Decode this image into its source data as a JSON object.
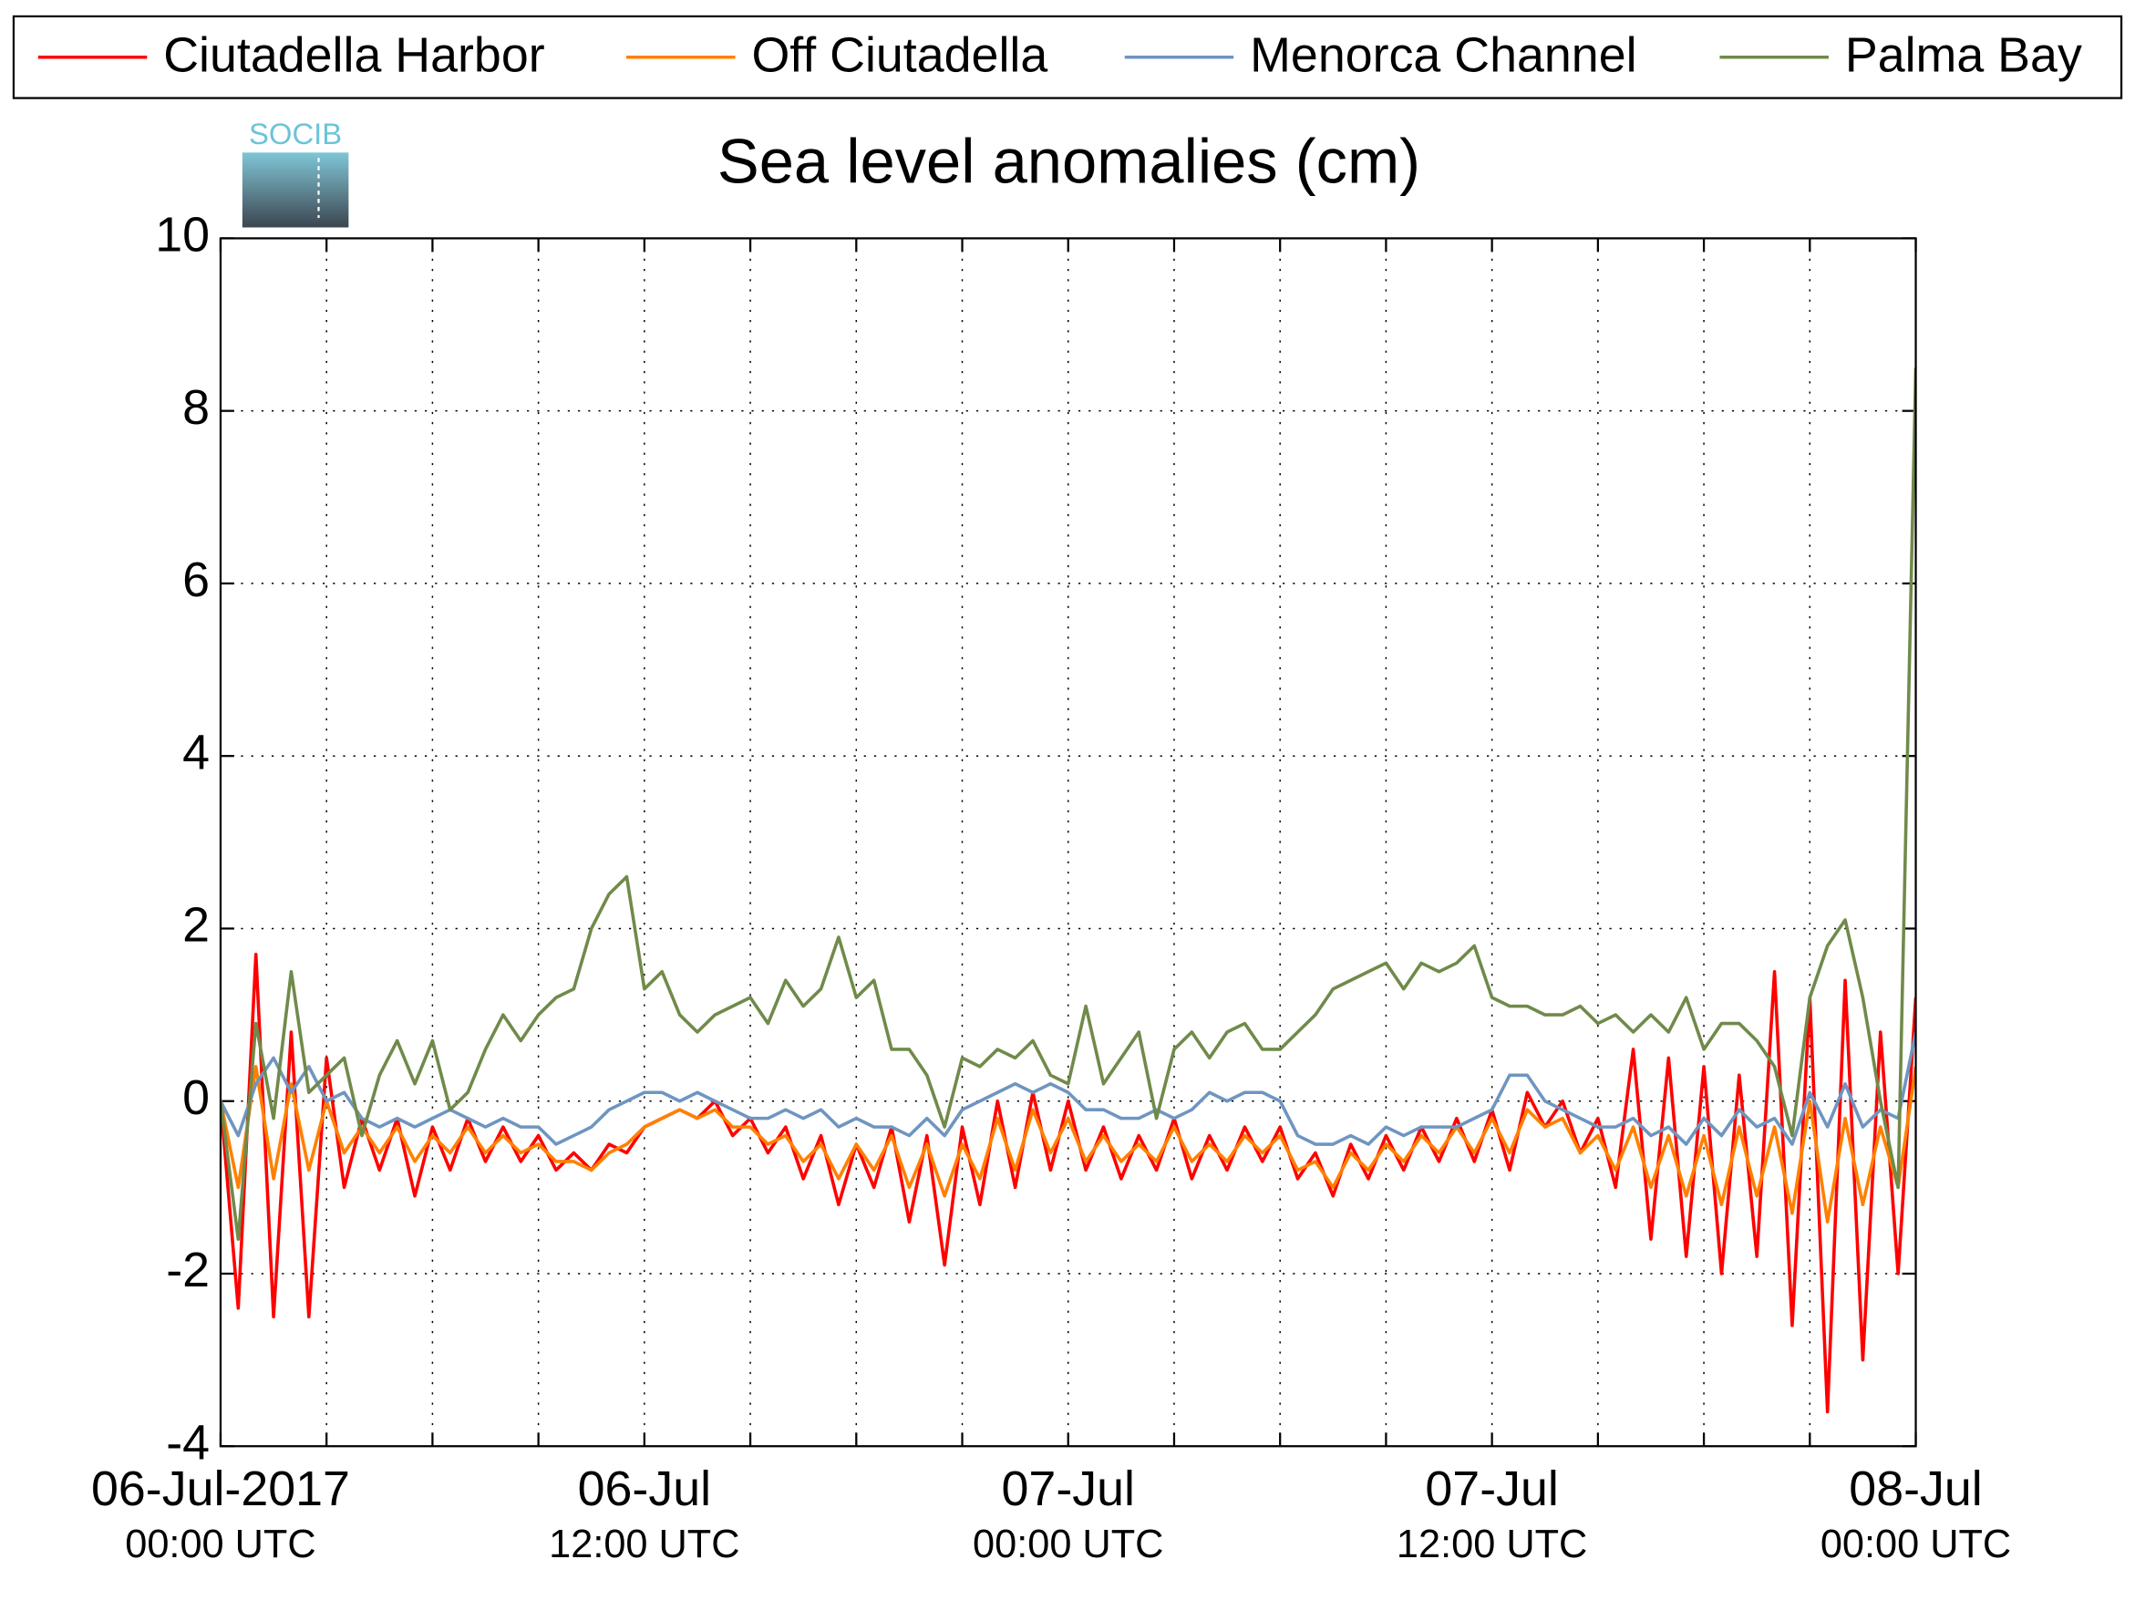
{
  "chart_data": {
    "type": "line",
    "title": "Sea level anomalies (cm)",
    "logo": "SOCIB",
    "legend": "top",
    "grid": true,
    "x": [
      0,
      0.5,
      1,
      1.5,
      2,
      2.5,
      3,
      3.5,
      4,
      4.5,
      5,
      5.5,
      6,
      6.5,
      7,
      7.5,
      8,
      8.5,
      9,
      9.5,
      10,
      10.5,
      11,
      11.5,
      12,
      12.5,
      13,
      13.5,
      14,
      14.5,
      15,
      15.5,
      16,
      16.5,
      17,
      17.5,
      18,
      18.5,
      19,
      19.5,
      20,
      20.5,
      21,
      21.5,
      22,
      22.5,
      23,
      23.5,
      24,
      24.5,
      25,
      25.5,
      26,
      26.5,
      27,
      27.5,
      28,
      28.5,
      29,
      29.5,
      30,
      30.5,
      31,
      31.5,
      32,
      32.5,
      33,
      33.5,
      34,
      34.5,
      35,
      35.5,
      36,
      36.5,
      37,
      37.5,
      38,
      38.5,
      39,
      39.5,
      40,
      40.5,
      41,
      41.5,
      42,
      42.5,
      43,
      43.5,
      44,
      44.5,
      45,
      45.5,
      46,
      46.5,
      47,
      47.5,
      48
    ],
    "xlim": [
      0,
      48
    ],
    "xticks": [
      {
        "value": 0,
        "label": [
          "06-Jul-2017",
          "00:00 UTC"
        ]
      },
      {
        "value": 3,
        "label": null
      },
      {
        "value": 6,
        "label": null
      },
      {
        "value": 9,
        "label": null
      },
      {
        "value": 12,
        "label": [
          "06-Jul",
          "12:00 UTC"
        ]
      },
      {
        "value": 15,
        "label": null
      },
      {
        "value": 18,
        "label": null
      },
      {
        "value": 21,
        "label": null
      },
      {
        "value": 24,
        "label": [
          "07-Jul",
          "00:00 UTC"
        ]
      },
      {
        "value": 27,
        "label": null
      },
      {
        "value": 30,
        "label": null
      },
      {
        "value": 33,
        "label": null
      },
      {
        "value": 36,
        "label": [
          "07-Jul",
          "12:00 UTC"
        ]
      },
      {
        "value": 39,
        "label": null
      },
      {
        "value": 42,
        "label": null
      },
      {
        "value": 45,
        "label": null
      },
      {
        "value": 48,
        "label": [
          "08-Jul",
          "00:00 UTC"
        ]
      }
    ],
    "ylim": [
      -4,
      10
    ],
    "yticks": [
      -4,
      -2,
      0,
      2,
      4,
      6,
      8,
      10
    ],
    "series": [
      {
        "name": "Ciutadella Harbor",
        "color": "#ff0000",
        "values": [
          0.0,
          -2.4,
          1.7,
          -2.5,
          0.8,
          -2.5,
          0.5,
          -1.0,
          -0.2,
          -0.8,
          -0.2,
          -1.1,
          -0.3,
          -0.8,
          -0.2,
          -0.7,
          -0.3,
          -0.7,
          -0.4,
          -0.8,
          -0.6,
          -0.8,
          -0.5,
          -0.6,
          -0.3,
          -0.2,
          -0.1,
          -0.2,
          0.0,
          -0.4,
          -0.2,
          -0.6,
          -0.3,
          -0.9,
          -0.4,
          -1.2,
          -0.5,
          -1.0,
          -0.3,
          -1.4,
          -0.4,
          -1.9,
          -0.3,
          -1.2,
          0.0,
          -1.0,
          0.1,
          -0.8,
          0.0,
          -0.8,
          -0.3,
          -0.9,
          -0.4,
          -0.8,
          -0.2,
          -0.9,
          -0.4,
          -0.8,
          -0.3,
          -0.7,
          -0.3,
          -0.9,
          -0.6,
          -1.1,
          -0.5,
          -0.9,
          -0.4,
          -0.8,
          -0.3,
          -0.7,
          -0.2,
          -0.7,
          -0.1,
          -0.8,
          0.1,
          -0.3,
          0.0,
          -0.6,
          -0.2,
          -1.0,
          0.6,
          -1.6,
          0.5,
          -1.8,
          0.4,
          -2.0,
          0.3,
          -1.8,
          1.5,
          -2.6,
          1.2,
          -3.6,
          1.4,
          -3.0,
          0.8,
          -2.0,
          1.2
        ]
      },
      {
        "name": "Off Ciutadella",
        "color": "#ff8000",
        "values": [
          0.0,
          -1.0,
          0.4,
          -0.9,
          0.2,
          -0.8,
          0.0,
          -0.6,
          -0.3,
          -0.6,
          -0.3,
          -0.7,
          -0.4,
          -0.6,
          -0.3,
          -0.6,
          -0.4,
          -0.6,
          -0.5,
          -0.7,
          -0.7,
          -0.8,
          -0.6,
          -0.5,
          -0.3,
          -0.2,
          -0.1,
          -0.2,
          -0.1,
          -0.3,
          -0.3,
          -0.5,
          -0.4,
          -0.7,
          -0.5,
          -0.9,
          -0.5,
          -0.8,
          -0.4,
          -1.0,
          -0.5,
          -1.1,
          -0.5,
          -0.9,
          -0.2,
          -0.8,
          -0.1,
          -0.6,
          -0.2,
          -0.7,
          -0.4,
          -0.7,
          -0.5,
          -0.7,
          -0.3,
          -0.7,
          -0.5,
          -0.7,
          -0.4,
          -0.6,
          -0.4,
          -0.8,
          -0.7,
          -1.0,
          -0.6,
          -0.8,
          -0.5,
          -0.7,
          -0.4,
          -0.6,
          -0.3,
          -0.6,
          -0.2,
          -0.6,
          -0.1,
          -0.3,
          -0.2,
          -0.6,
          -0.4,
          -0.8,
          -0.3,
          -1.0,
          -0.4,
          -1.1,
          -0.4,
          -1.2,
          -0.3,
          -1.1,
          -0.3,
          -1.3,
          0.0,
          -1.4,
          -0.2,
          -1.2,
          -0.3,
          -1.0,
          0.4
        ]
      },
      {
        "name": "Menorca Channel",
        "color": "#6f95c0",
        "values": [
          0.0,
          -0.4,
          0.2,
          0.5,
          0.1,
          0.4,
          0.0,
          0.1,
          -0.2,
          -0.3,
          -0.2,
          -0.3,
          -0.2,
          -0.1,
          -0.2,
          -0.3,
          -0.2,
          -0.3,
          -0.3,
          -0.5,
          -0.4,
          -0.3,
          -0.1,
          0.0,
          0.1,
          0.1,
          0.0,
          0.1,
          0.0,
          -0.1,
          -0.2,
          -0.2,
          -0.1,
          -0.2,
          -0.1,
          -0.3,
          -0.2,
          -0.3,
          -0.3,
          -0.4,
          -0.2,
          -0.4,
          -0.1,
          0.0,
          0.1,
          0.2,
          0.1,
          0.2,
          0.1,
          -0.1,
          -0.1,
          -0.2,
          -0.2,
          -0.1,
          -0.2,
          -0.1,
          0.1,
          0.0,
          0.1,
          0.1,
          0.0,
          -0.4,
          -0.5,
          -0.5,
          -0.4,
          -0.5,
          -0.3,
          -0.4,
          -0.3,
          -0.3,
          -0.3,
          -0.2,
          -0.1,
          0.3,
          0.3,
          0.0,
          -0.1,
          -0.2,
          -0.3,
          -0.3,
          -0.2,
          -0.4,
          -0.3,
          -0.5,
          -0.2,
          -0.4,
          -0.1,
          -0.3,
          -0.2,
          -0.5,
          0.1,
          -0.3,
          0.2,
          -0.3,
          -0.1,
          -0.2,
          0.8
        ]
      },
      {
        "name": "Palma Bay",
        "color": "#708a4a",
        "values": [
          0.0,
          -1.6,
          0.9,
          -0.2,
          1.5,
          0.1,
          0.3,
          0.5,
          -0.4,
          0.3,
          0.7,
          0.2,
          0.7,
          -0.1,
          0.1,
          0.6,
          1.0,
          0.7,
          1.0,
          1.2,
          1.3,
          2.0,
          2.4,
          2.6,
          1.3,
          1.5,
          1.0,
          0.8,
          1.0,
          1.1,
          1.2,
          0.9,
          1.4,
          1.1,
          1.3,
          1.9,
          1.2,
          1.4,
          0.6,
          0.6,
          0.3,
          -0.3,
          0.5,
          0.4,
          0.6,
          0.5,
          0.7,
          0.3,
          0.2,
          1.1,
          0.2,
          0.5,
          0.8,
          -0.2,
          0.6,
          0.8,
          0.5,
          0.8,
          0.9,
          0.6,
          0.6,
          0.8,
          1.0,
          1.3,
          1.4,
          1.5,
          1.6,
          1.3,
          1.6,
          1.5,
          1.6,
          1.8,
          1.2,
          1.1,
          1.1,
          1.0,
          1.0,
          1.1,
          0.9,
          1.0,
          0.8,
          1.0,
          0.8,
          1.2,
          0.6,
          0.9,
          0.9,
          0.7,
          0.4,
          -0.4,
          1.2,
          1.8,
          2.1,
          1.2,
          0.0,
          -1.0,
          8.5
        ]
      }
    ]
  }
}
